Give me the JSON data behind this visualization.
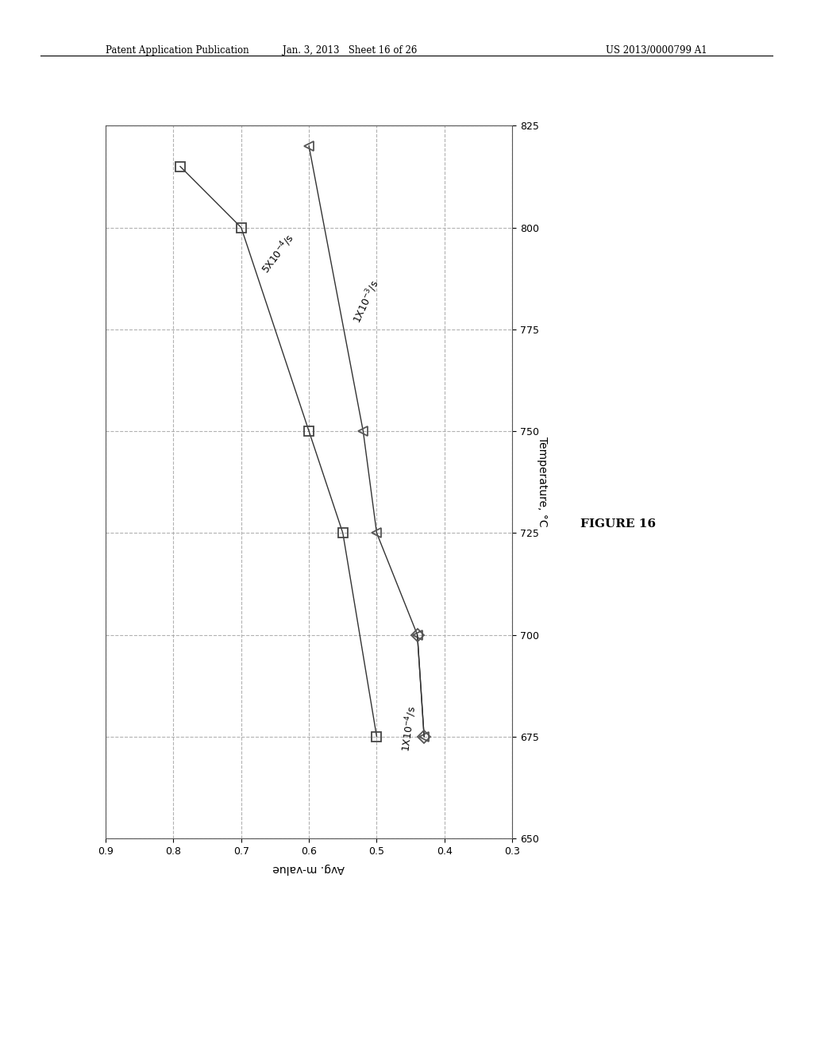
{
  "header_left": "Patent Application Publication",
  "header_center": "Jan. 3, 2013   Sheet 16 of 26",
  "header_right": "US 2013/0000799 A1",
  "figure_label": "FIGURE 16",
  "temp_label": "Temperature, °C",
  "mval_label": "Avg. m-value",
  "temp_ticks": [
    650,
    675,
    700,
    725,
    750,
    775,
    800,
    825
  ],
  "mval_ticks": [
    0.3,
    0.4,
    0.5,
    0.6,
    0.7,
    0.8,
    0.9
  ],
  "series_5e4": {
    "label": "5X10$^{-4}$/s",
    "temp": [
      815,
      800,
      750,
      725,
      675
    ],
    "mval": [
      0.79,
      0.7,
      0.6,
      0.55,
      0.5
    ]
  },
  "series_1e3": {
    "label": "1X10$^{-3}$/s",
    "temp": [
      820,
      750,
      725,
      700,
      675
    ],
    "mval": [
      0.6,
      0.52,
      0.5,
      0.44,
      0.43
    ]
  },
  "series_1e4": {
    "label": "1X10$^{-4}$/s",
    "temp": [
      700,
      675
    ],
    "mval": [
      0.44,
      0.43
    ]
  },
  "background_color": "#ffffff",
  "grid_color": "#aaaaaa",
  "line_color": "#333333"
}
